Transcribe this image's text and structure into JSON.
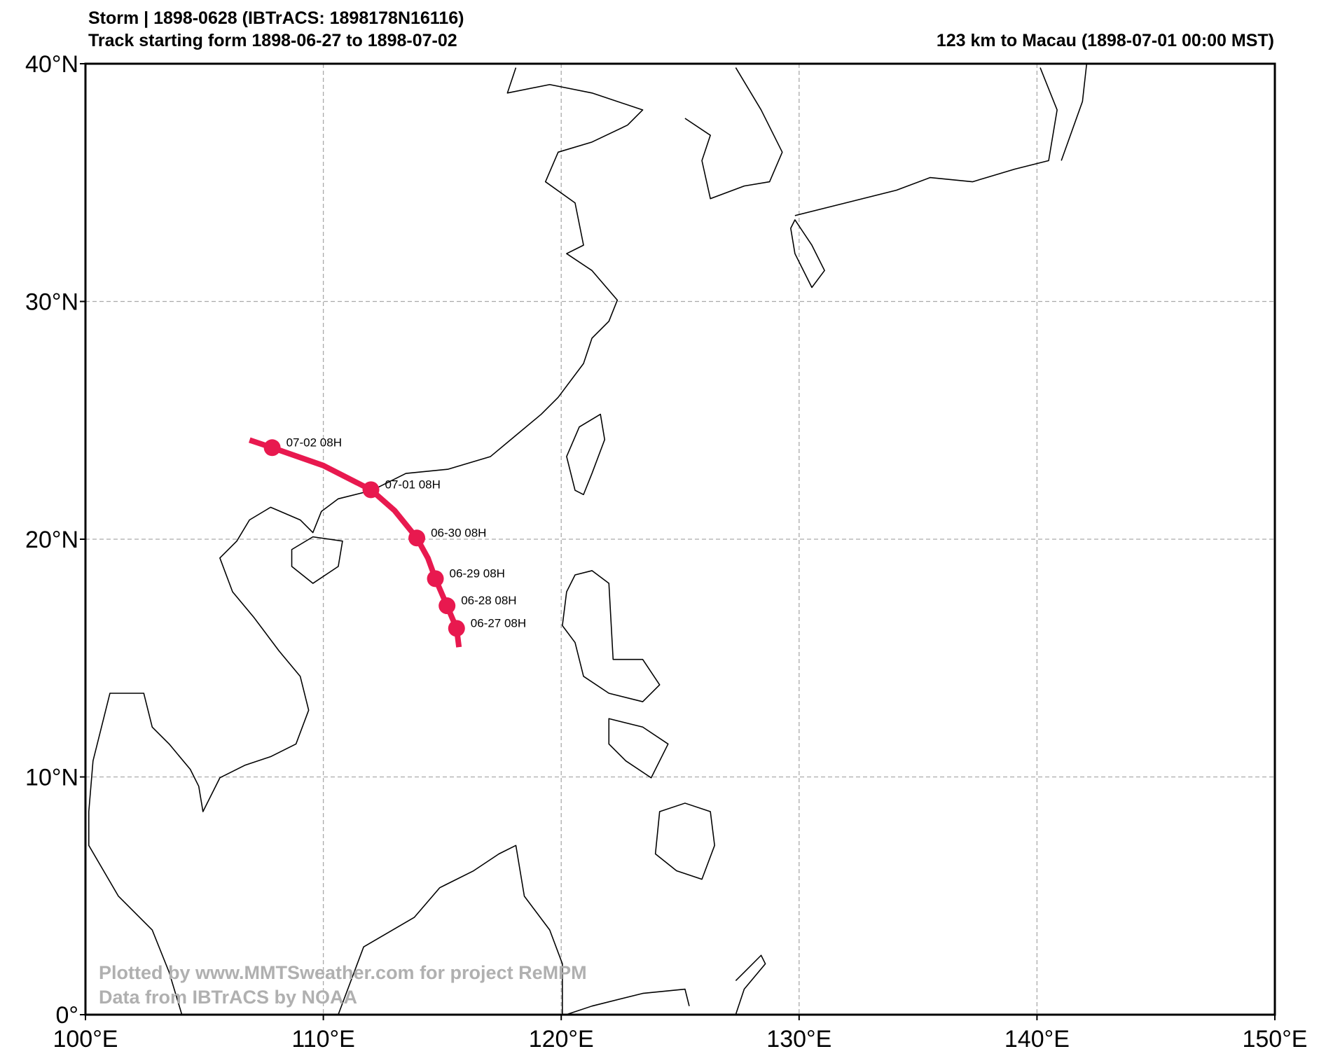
{
  "map": {
    "title": "Storm | 1898-0628 (IBTrACS: 1898178N16116)",
    "subtitle": "Track starting form 1898-06-27 to 1898-07-02",
    "right_title": "123 km to Macau (1898-07-01 00:00 MST)",
    "watermark": [
      "Plotted by www.MMTSweather.com for project ReMPM",
      "Data from IBTrACS by NOAA"
    ],
    "xlim": [
      100,
      150
    ],
    "ylim": [
      0,
      40
    ],
    "xticks": [
      {
        "value": 100,
        "label": "100°E"
      },
      {
        "value": 110,
        "label": "110°E"
      },
      {
        "value": 120,
        "label": "120°E"
      },
      {
        "value": 130,
        "label": "130°E"
      },
      {
        "value": 140,
        "label": "140°E"
      },
      {
        "value": 150,
        "label": "150°E"
      }
    ],
    "yticks": [
      {
        "value": 0,
        "label": "0°"
      },
      {
        "value": 10,
        "label": "10°N"
      },
      {
        "value": 20,
        "label": "20°N"
      },
      {
        "value": 30,
        "label": "30°N"
      },
      {
        "value": 40,
        "label": "40°N"
      }
    ],
    "grid": true,
    "track": {
      "color": "#e8194f",
      "lon": [
        106.9,
        107.85,
        110.0,
        112.0,
        113.0,
        113.93,
        114.4,
        114.71,
        115.2,
        115.6,
        115.7
      ],
      "lat": [
        24.17,
        23.85,
        23.1,
        22.08,
        21.2,
        20.05,
        19.2,
        18.34,
        17.2,
        16.25,
        15.46
      ]
    },
    "points": [
      {
        "label": "07-02 08H",
        "lon": 107.85,
        "lat": 23.85
      },
      {
        "label": "07-01 08H",
        "lon": 112.0,
        "lat": 22.08
      },
      {
        "label": "06-30 08H",
        "lon": 113.93,
        "lat": 20.05
      },
      {
        "label": "06-29 08H",
        "lon": 114.71,
        "lat": 18.34
      },
      {
        "label": "06-28 08H",
        "lon": 115.2,
        "lat": 17.2
      },
      {
        "label": "06-27 08H",
        "lon": 115.6,
        "lat": 16.25
      }
    ]
  }
}
